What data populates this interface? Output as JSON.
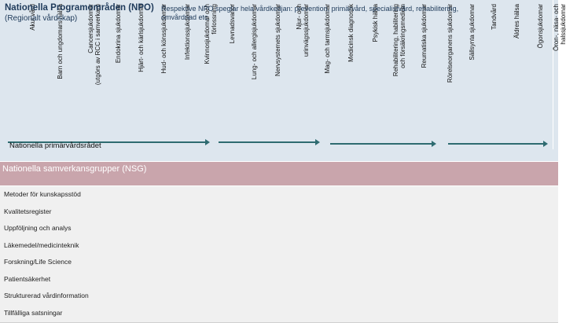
{
  "npo": {
    "title": "Nationella Programområden (NPO)",
    "subtitle": "(Regionalt vårdskap)",
    "note": "Respektive NPO speglar hela vårdkedjan: prevention, primärvård, specialistvård, rehabilitering, omvårdnad etc.",
    "columns": [
      "Akut vård",
      "Barn och ungdomars hälsa",
      "Cancersjukdomar\n(utgörs av RCC i samverkan)",
      "Endokrina sjukdomar",
      "Hjärt- och kärlsjukdomar",
      "Hud- och könssjukdomar",
      "Infektionssjukdomar",
      "Kvinnosjukdomar och\nförlossning",
      "Levnadsvanor",
      "Lung- och allergisjukdomar",
      "Nervsystemets sjukdomar",
      "Njur- och\nurinvägssjukdomar",
      "Mag- och tarmsjukdomar",
      "Medicinsk diagnostik",
      "Psykisk hälsa",
      "Rehabilitering, habilitering\noch försäkringsmedicin",
      "Reumatiska sjukdomar",
      "Rörelseorganens sjukdomar",
      "Sällsynta sjukdomar",
      "Tandvård",
      "Äldres hälsa",
      "Ögonsjukdomar",
      "Öron-, näsa- och\nhalssjukdomar"
    ],
    "council": "Nationella primärvårdsrådet"
  },
  "nsg": {
    "title": "Nationella samverkansgrupper (NSG)",
    "rows": [
      "Metoder för kunskapsstöd",
      "Kvalitetsregister",
      "Uppföljning och analys",
      "Läkemedel/medicinteknik",
      "Forskning/Life Science",
      "Patientsäkerhet",
      "Strukturerad vårdinformation",
      "Tillfälliga satsningar"
    ]
  }
}
